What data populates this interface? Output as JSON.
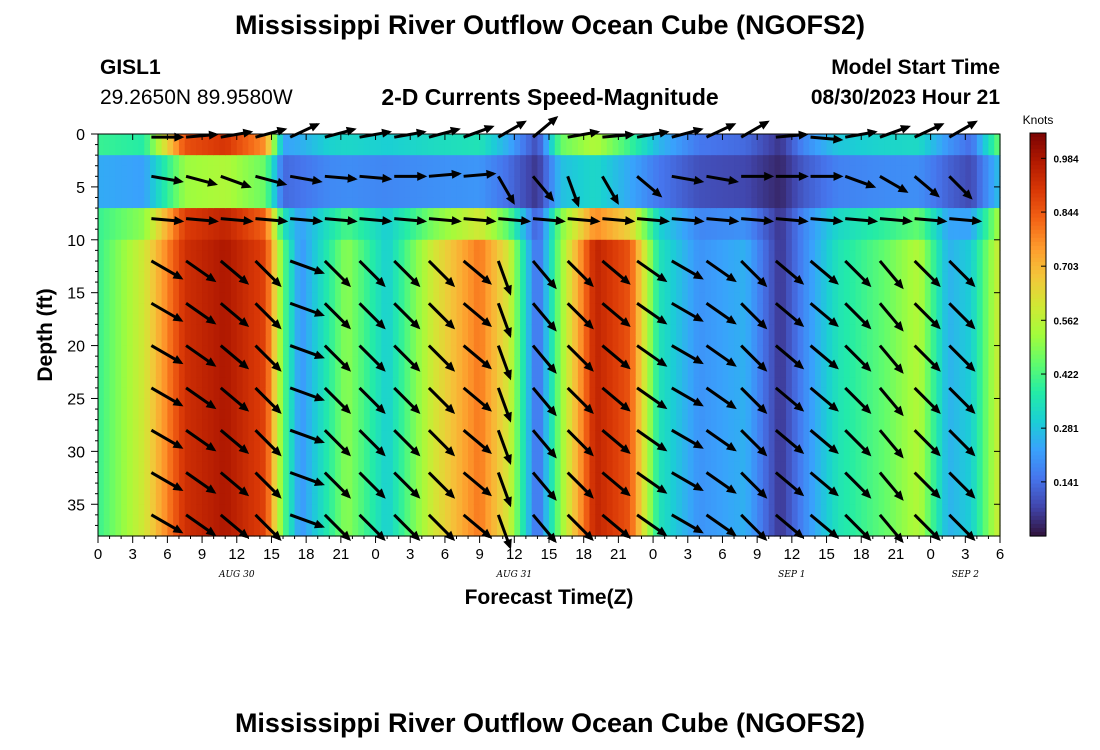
{
  "header": {
    "title": "Mississippi River Outflow Ocean Cube (NGOFS2)",
    "station": "GISL1",
    "coordinates": "29.2650N  89.9580W",
    "variable": "2-D Currents Speed-Magnitude",
    "model_start_label": "Model Start Time",
    "model_start_value": "08/30/2023 Hour 21"
  },
  "footer": {
    "title": "Mississippi River Outflow Ocean Cube (NGOFS2)"
  },
  "chart_data": {
    "type": "heatmap",
    "xlabel": "Forecast Time(Z)",
    "ylabel": "Depth (ft)",
    "x_ticks": [
      "0",
      "3",
      "6",
      "9",
      "12",
      "15",
      "18",
      "21",
      "0",
      "3",
      "6",
      "9",
      "12",
      "15",
      "18",
      "21",
      "0",
      "3",
      "6",
      "9",
      "12",
      "15",
      "18",
      "21",
      "0",
      "3",
      "6"
    ],
    "x_range_hours": [
      0,
      78
    ],
    "date_labels": [
      {
        "text": "AUG 30",
        "hour": 12
      },
      {
        "text": "AUG 31",
        "hour": 36
      },
      {
        "text": "SEP 1",
        "hour": 60
      },
      {
        "text": "SEP 2",
        "hour": 75
      }
    ],
    "y_ticks": [
      "0",
      "5",
      "10",
      "15",
      "20",
      "25",
      "30",
      "35"
    ],
    "ylim": [
      0,
      38
    ],
    "y_inverted": true,
    "colorbar": {
      "label": "Knots",
      "range": [
        0,
        1.05
      ],
      "tick_labels": [
        "0.984",
        "0.844",
        "0.703",
        "0.562",
        "0.422",
        "0.281",
        "0.141"
      ],
      "colors": [
        "#30123b",
        "#4145ab",
        "#4675ed",
        "#39a2fc",
        "#1bcfd4",
        "#24eca6",
        "#61fc6c",
        "#a4fc3b",
        "#d1e834",
        "#f3c63a",
        "#fe9b2d",
        "#f36315",
        "#d93806",
        "#b11901",
        "#7a0403"
      ]
    },
    "speed_keys": {
      "hours": [
        0,
        4,
        7.5,
        11,
        14.5,
        16,
        17.5,
        20,
        21.5,
        25,
        29,
        33,
        35.5,
        38,
        40,
        43,
        46,
        48.5,
        52,
        56,
        59,
        61,
        64,
        68,
        71,
        73.5,
        75.5,
        78
      ],
      "surface": [
        0.4,
        0.35,
        0.85,
        0.9,
        0.75,
        0.2,
        0.25,
        0.3,
        0.3,
        0.3,
        0.3,
        0.3,
        0.2,
        0.08,
        0.45,
        0.5,
        0.35,
        0.25,
        0.15,
        0.12,
        0.05,
        0.18,
        0.28,
        0.3,
        0.3,
        0.2,
        0.12,
        0.45
      ],
      "deep": [
        0.4,
        0.6,
        0.92,
        0.98,
        0.88,
        0.45,
        0.2,
        0.38,
        0.5,
        0.3,
        0.6,
        0.8,
        0.6,
        0.12,
        0.5,
        0.95,
        0.85,
        0.35,
        0.2,
        0.25,
        0.05,
        0.18,
        0.35,
        0.45,
        0.55,
        0.25,
        0.3,
        0.6
      ]
    },
    "vectors": {
      "hours": [
        6,
        9,
        12,
        15,
        18,
        21,
        24,
        27,
        30,
        33,
        36,
        39,
        42,
        45,
        48,
        51,
        54,
        57,
        60,
        63,
        66,
        69,
        72,
        75
      ],
      "surface_angle_deg": [
        0,
        5,
        10,
        15,
        25,
        15,
        10,
        10,
        15,
        20,
        30,
        40,
        10,
        5,
        10,
        15,
        25,
        30,
        5,
        -5,
        10,
        20,
        25,
        30
      ],
      "surface_band_angle_deg": [
        -10,
        -15,
        -20,
        -15,
        -10,
        -5,
        -5,
        0,
        5,
        5,
        -60,
        -50,
        -70,
        -60,
        -40,
        -10,
        -10,
        0,
        0,
        0,
        -20,
        -30,
        -40,
        -45
      ],
      "deep_angle_deg": [
        -30,
        -35,
        -40,
        -45,
        -20,
        -45,
        -45,
        -45,
        -45,
        -40,
        -70,
        -50,
        -45,
        -40,
        -35,
        -30,
        -35,
        -45,
        -40,
        -40,
        -45,
        -50,
        -45,
        -45
      ]
    }
  }
}
